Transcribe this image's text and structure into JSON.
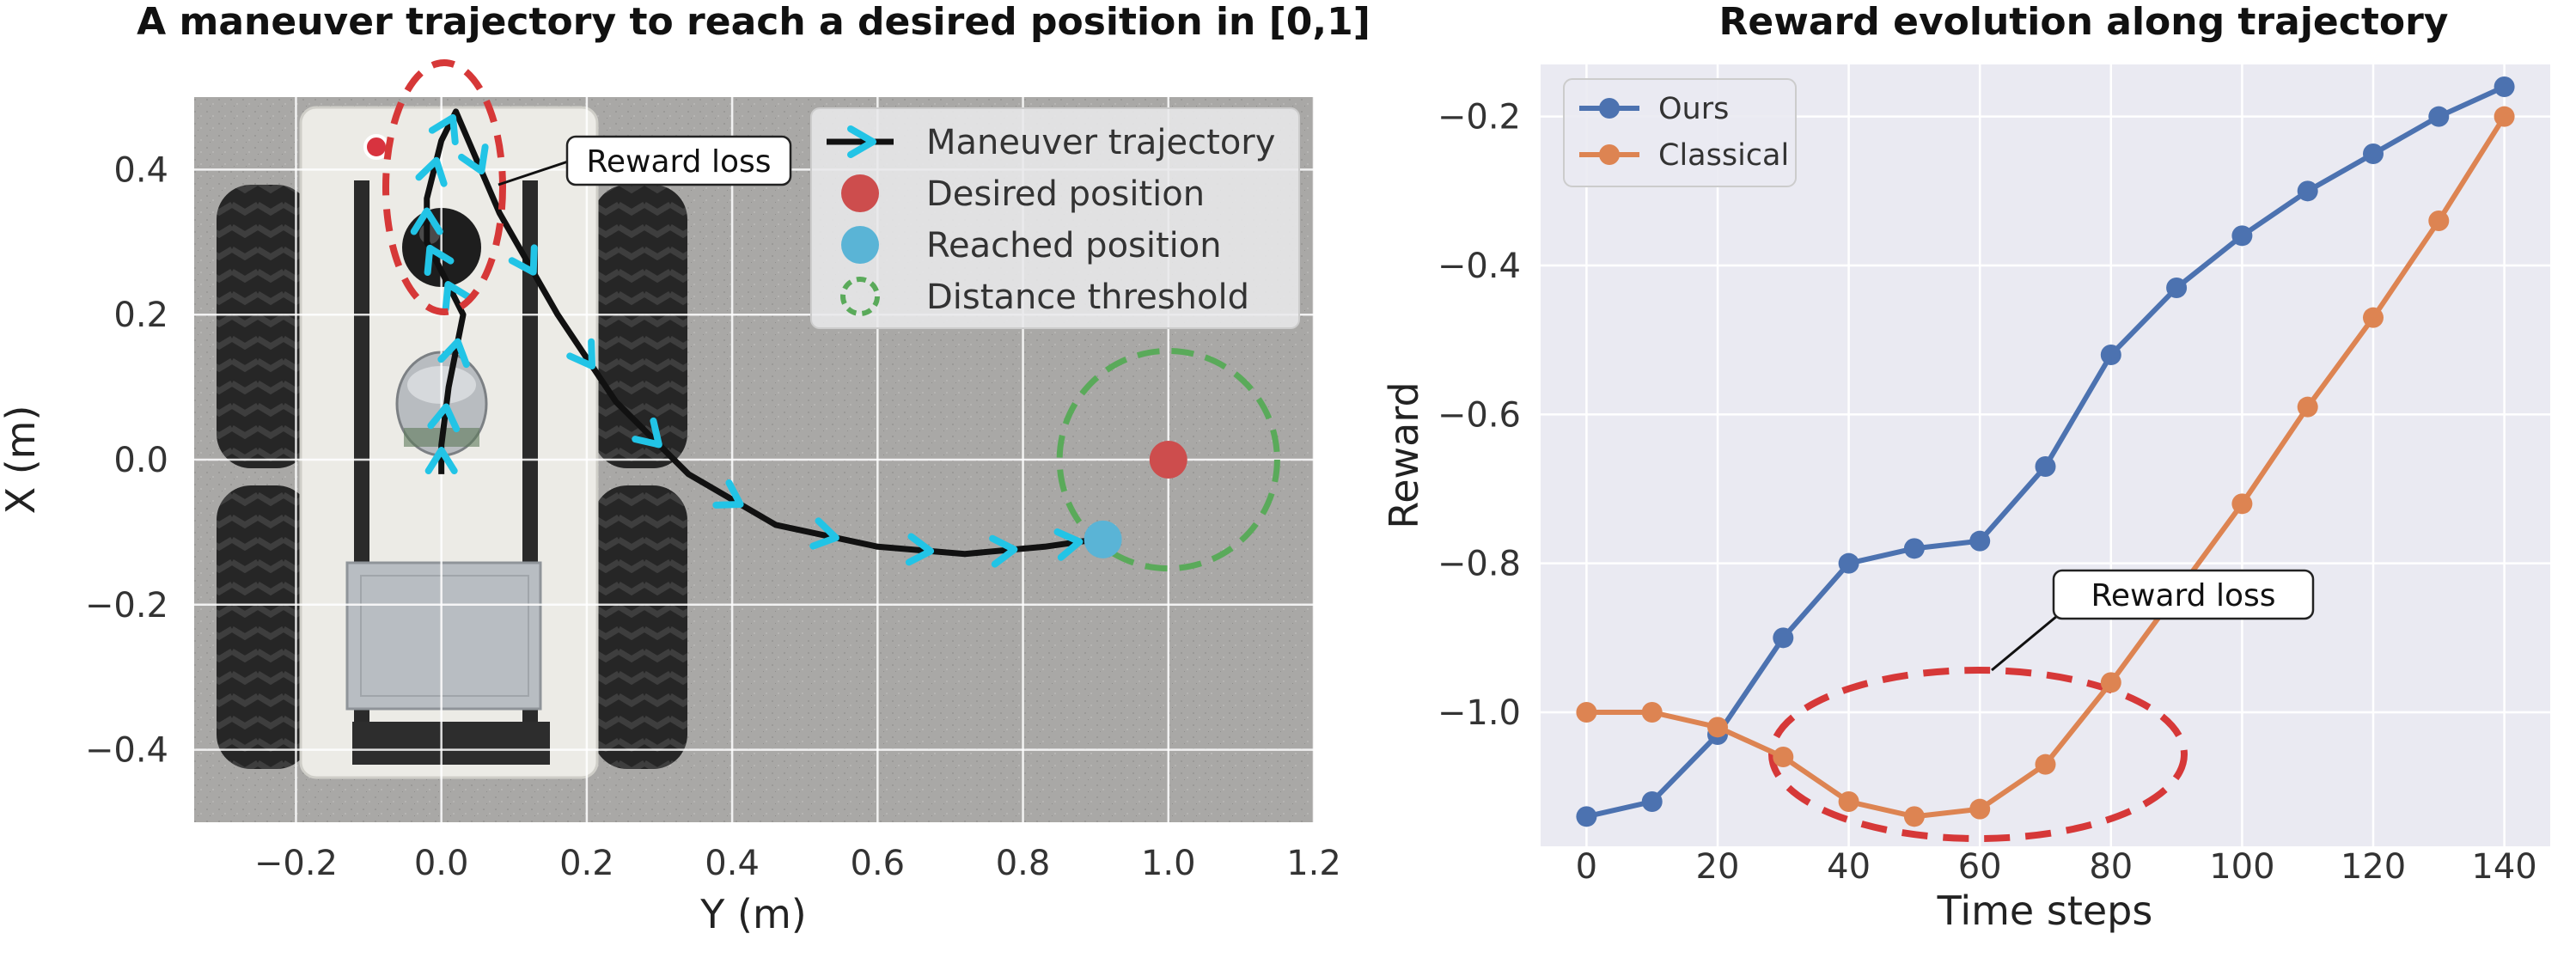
{
  "chart_data": [
    {
      "type": "scatter",
      "title": "A maneuver trajectory to reach a desired position in [0,1]",
      "xlabel": "Y (m)",
      "ylabel": "X (m)",
      "xlim": [
        -0.34,
        1.2
      ],
      "ylim": [
        -0.5,
        0.5
      ],
      "x_ticks": [
        -0.2,
        0.0,
        0.2,
        0.4,
        0.6,
        0.8,
        1.0,
        1.2
      ],
      "x_tick_labels": [
        "−0.2",
        "0.0",
        "0.2",
        "0.4",
        "0.6",
        "0.8",
        "1.0",
        "1.2"
      ],
      "y_ticks": [
        0.4,
        0.2,
        0.0,
        -0.2,
        -0.4
      ],
      "y_tick_labels": [
        "0.4",
        "0.2",
        "0.0",
        "−0.2",
        "−0.4"
      ],
      "background": "photo of wheeled mobile robot (top view) on gray floor",
      "series": [
        {
          "name": "Maneuver trajectory",
          "color": "#111111",
          "marker_color": "#22c4e6",
          "x": [
            0.0,
            0.0,
            0.01,
            0.03,
            0.0,
            -0.02,
            -0.02,
            0.0,
            0.02,
            0.08,
            0.16,
            0.24,
            0.34,
            0.46,
            0.6,
            0.72,
            0.83,
            0.9
          ],
          "y": [
            -0.02,
            0.02,
            0.1,
            0.2,
            0.26,
            0.3,
            0.36,
            0.44,
            0.48,
            0.34,
            0.2,
            0.08,
            -0.02,
            -0.09,
            -0.12,
            -0.13,
            -0.12,
            -0.11
          ]
        }
      ],
      "desired_position": {
        "name": "Desired position",
        "x": 1.0,
        "y": 0.0,
        "color": "#cd4d4d"
      },
      "reached_position": {
        "name": "Reached position",
        "x": 0.91,
        "y": -0.11,
        "color": "#5ab4d6"
      },
      "distance_threshold": {
        "name": "Distance threshold",
        "center_x": 1.0,
        "center_y": 0.0,
        "radius": 0.15,
        "color": "#5aaa5a"
      },
      "annotation": {
        "text": "Reward loss",
        "color": "#d63838"
      },
      "legend": [
        "Maneuver trajectory",
        "Desired position",
        "Reached position",
        "Distance threshold"
      ],
      "legend_location": "top-right"
    },
    {
      "type": "line",
      "title": "Reward evolution along trajectory",
      "xlabel": "Time steps",
      "ylabel": "Reward",
      "xlim": [
        -7,
        147
      ],
      "ylim": [
        -1.18,
        -0.13
      ],
      "x_ticks": [
        0,
        20,
        40,
        60,
        80,
        100,
        120,
        140
      ],
      "x_tick_labels": [
        "0",
        "20",
        "40",
        "60",
        "80",
        "100",
        "120",
        "140"
      ],
      "y_ticks": [
        -0.2,
        -0.4,
        -0.6,
        -0.8,
        -1.0
      ],
      "y_tick_labels": [
        "−0.2",
        "−0.4",
        "−0.6",
        "−0.8",
        "−1.0"
      ],
      "x": [
        0,
        10,
        20,
        30,
        40,
        50,
        60,
        70,
        80,
        90,
        100,
        110,
        120,
        130,
        140
      ],
      "series": [
        {
          "name": "Ours",
          "color": "#4c72b0",
          "values": [
            -1.14,
            -1.12,
            -1.03,
            -0.9,
            -0.8,
            -0.78,
            -0.77,
            -0.67,
            -0.52,
            -0.43,
            -0.36,
            -0.3,
            -0.25,
            -0.2,
            -0.16
          ]
        },
        {
          "name": "Classical",
          "color": "#dd8452",
          "values": [
            -1.0,
            -1.0,
            -1.02,
            -1.06,
            -1.12,
            -1.14,
            -1.13,
            -1.07,
            -0.96,
            -0.84,
            -0.72,
            -0.59,
            -0.47,
            -0.34,
            -0.2
          ]
        }
      ],
      "annotation": {
        "text": "Reward loss",
        "color": "#d63838"
      },
      "legend_location": "top-left",
      "grid": true
    }
  ]
}
